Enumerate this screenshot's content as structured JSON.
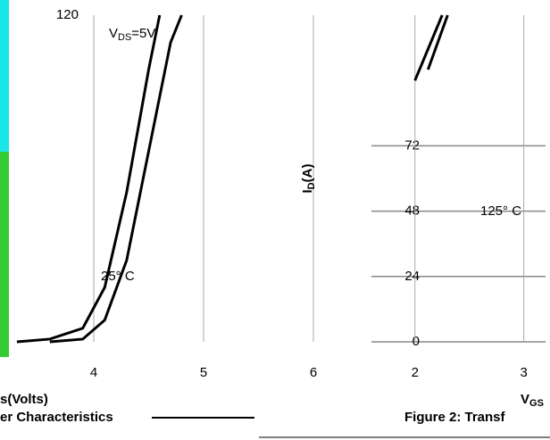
{
  "chart_data": [
    {
      "type": "line",
      "xlim": [
        3.2,
        6.5
      ],
      "xticks": [
        4,
        5,
        6
      ],
      "ylim": [
        0,
        120
      ],
      "yticks": [
        120
      ],
      "grid": true,
      "annotations": [
        {
          "main": "V",
          "sub": "DS",
          "rest": "=5V"
        },
        {
          "main": "25° C"
        }
      ],
      "xlabel": {
        "main": "s(Volts)"
      },
      "caption": "er Characteristics",
      "series": [
        {
          "color": "#000000",
          "x": [
            3.3,
            3.6,
            3.9,
            4.1,
            4.3,
            4.5,
            4.6
          ],
          "values": [
            0,
            1,
            5,
            20,
            55,
            100,
            120
          ]
        },
        {
          "color": "#000000",
          "x": [
            3.6,
            3.9,
            4.1,
            4.3,
            4.5,
            4.7,
            4.8
          ],
          "values": [
            0,
            1,
            8,
            30,
            70,
            110,
            120
          ]
        }
      ]
    },
    {
      "type": "line",
      "xlim": [
        1.6,
        3.2
      ],
      "xticks": [
        2,
        3
      ],
      "ylim": [
        0,
        120
      ],
      "yticks": [
        0,
        24,
        48,
        72
      ],
      "grid": true,
      "ylabel": {
        "main": "I",
        "sub": "D",
        "rest": "(A)"
      },
      "annotations": [
        {
          "main": "125° C"
        }
      ],
      "xlabel": {
        "main": "V",
        "sub": "GS"
      },
      "caption": "Figure 2: Transf",
      "series": [
        {
          "color": "#000000",
          "x": [
            2.0,
            2.25
          ],
          "values": [
            96,
            120
          ]
        },
        {
          "color": "#000000",
          "x": [
            2.12,
            2.3
          ],
          "values": [
            100,
            120
          ]
        }
      ]
    }
  ]
}
